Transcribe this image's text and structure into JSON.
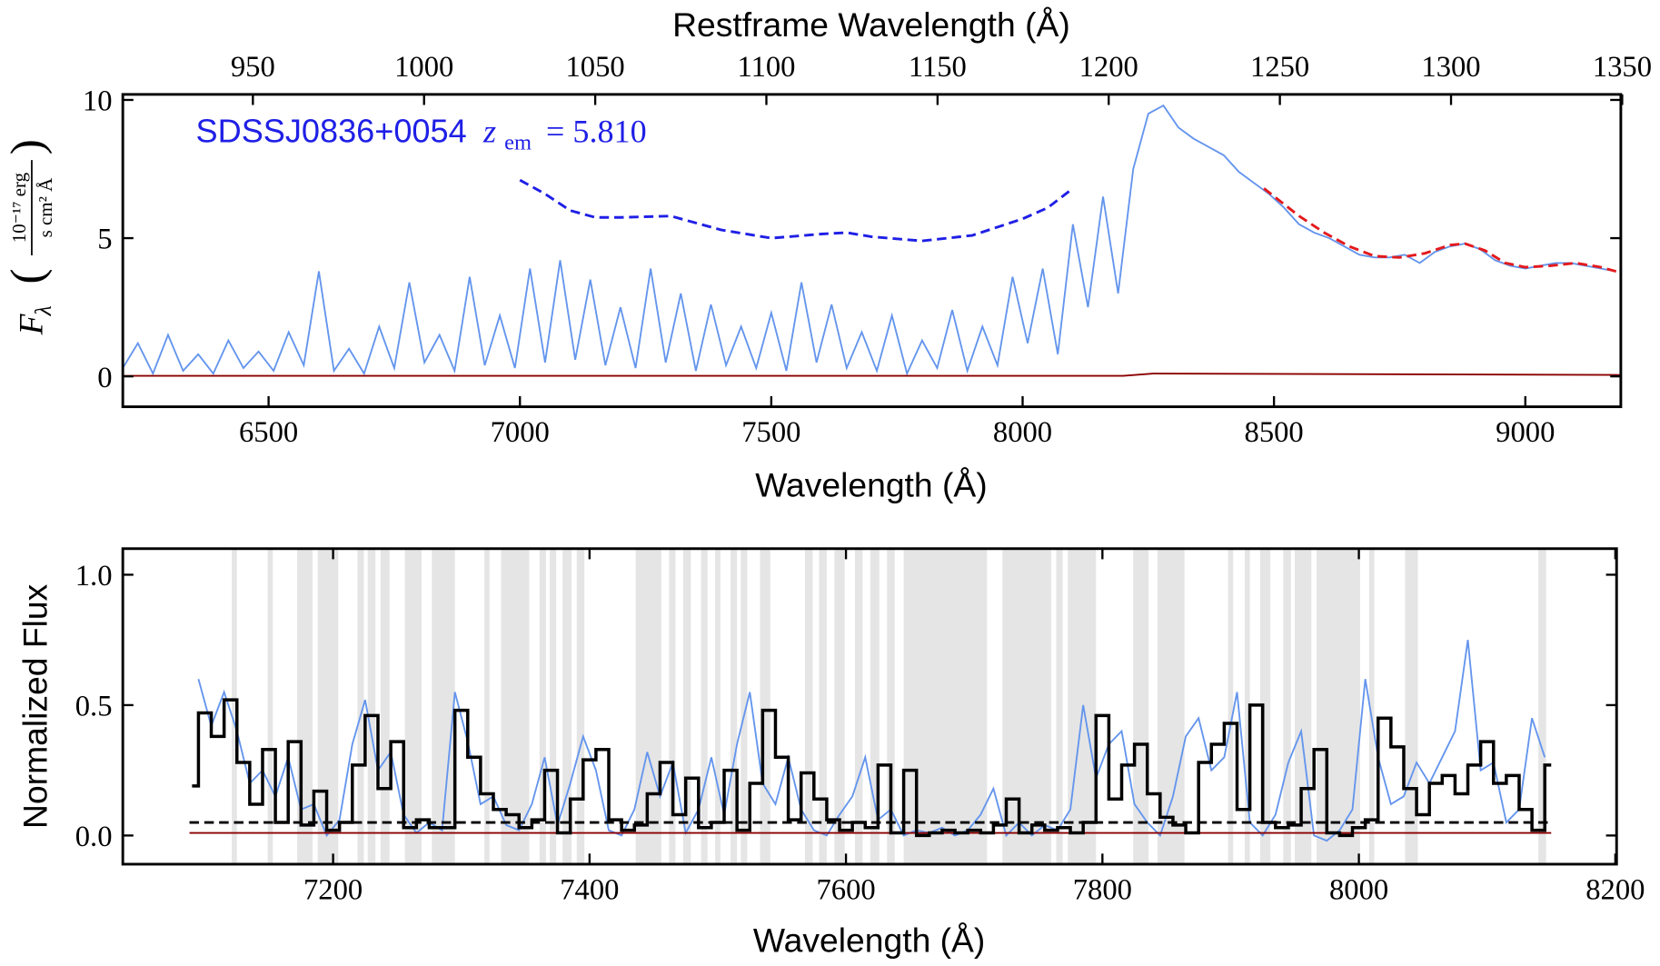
{
  "chart_data": [
    {
      "type": "line",
      "xlabel": "Wavelength (Å)",
      "x2label": "Restframe Wavelength (Å)",
      "ylabel": "F",
      "ylabel_sub": "λ",
      "yunit_num": "10⁻¹⁷ erg",
      "yunit_den": "s cm² Å",
      "annotation": {
        "name": "SDSSJ0836+0054",
        "z": "z",
        "z_sub": "em",
        "z_value": "= 5.810",
        "color": "#1f1fe6"
      },
      "xlim": [
        6210,
        9190
      ],
      "xticks": [
        6500,
        7000,
        7500,
        8000,
        8500,
        9000
      ],
      "x2lim": [
        912,
        1349.6
      ],
      "x2ticks": [
        950,
        1000,
        1050,
        1100,
        1150,
        1200,
        1250,
        1300,
        1350
      ],
      "ylim": [
        -1.1,
        10.2
      ],
      "yticks": [
        0,
        5,
        10
      ],
      "series": [
        {
          "color": "#6495ed",
          "x": [
            6210,
            6240,
            6270,
            6300,
            6330,
            6360,
            6390,
            6420,
            6450,
            6480,
            6510,
            6540,
            6570,
            6600,
            6630,
            6660,
            6690,
            6720,
            6750,
            6780,
            6810,
            6840,
            6870,
            6900,
            6930,
            6960,
            6990,
            7020,
            7050,
            7080,
            7110,
            7140,
            7170,
            7200,
            7230,
            7260,
            7290,
            7320,
            7350,
            7380,
            7410,
            7440,
            7470,
            7500,
            7530,
            7560,
            7590,
            7620,
            7650,
            7680,
            7710,
            7740,
            7770,
            7800,
            7830,
            7860,
            7890,
            7920,
            7950,
            7980,
            8010,
            8040,
            8070,
            8100,
            8130,
            8160,
            8190,
            8220,
            8250,
            8280,
            8310,
            8340,
            8370,
            8400,
            8430,
            8460,
            8490,
            8520,
            8550,
            8580,
            8610,
            8640,
            8670,
            8700,
            8730,
            8760,
            8790,
            8820,
            8850,
            8880,
            8910,
            8940,
            8970,
            9000,
            9030,
            9060,
            9090,
            9120,
            9150,
            9180
          ],
          "values": [
            0.3,
            1.2,
            0.1,
            1.5,
            0.2,
            0.8,
            0.1,
            1.3,
            0.3,
            0.9,
            0.2,
            1.6,
            0.4,
            3.8,
            0.2,
            1.0,
            0.1,
            1.8,
            0.3,
            3.4,
            0.5,
            1.5,
            0.2,
            3.6,
            0.4,
            2.2,
            0.3,
            3.9,
            0.5,
            4.2,
            0.6,
            3.5,
            0.4,
            2.5,
            0.3,
            3.9,
            0.5,
            3.0,
            0.2,
            2.6,
            0.4,
            1.8,
            0.3,
            2.3,
            0.2,
            3.4,
            0.5,
            2.6,
            0.3,
            1.6,
            0.2,
            2.2,
            0.1,
            1.3,
            0.3,
            2.4,
            0.2,
            1.8,
            0.4,
            3.6,
            1.2,
            3.9,
            0.8,
            5.5,
            2.5,
            6.5,
            3.0,
            7.5,
            9.5,
            9.8,
            9.0,
            8.6,
            8.3,
            8.0,
            7.4,
            7.0,
            6.6,
            6.1,
            5.5,
            5.2,
            5.0,
            4.7,
            4.4,
            4.3,
            4.3,
            4.4,
            4.1,
            4.5,
            4.7,
            4.8,
            4.6,
            4.2,
            4.0,
            3.9,
            4.0,
            4.1,
            4.1,
            4.0,
            3.9,
            3.8
          ]
        },
        {
          "color": "#8b0000",
          "x": [
            6210,
            8200,
            8260,
            9190
          ],
          "values": [
            0.02,
            0.02,
            0.1,
            0.05
          ]
        },
        {
          "color": "#e31a1c",
          "dash": true,
          "x": [
            8480,
            8550,
            8600,
            8650,
            8700,
            8750,
            8800,
            8850,
            8880,
            8920,
            8960,
            9000,
            9050,
            9100,
            9150,
            9190
          ],
          "values": [
            6.8,
            5.8,
            5.2,
            4.7,
            4.35,
            4.3,
            4.45,
            4.75,
            4.8,
            4.55,
            4.1,
            3.95,
            4.0,
            4.1,
            3.95,
            3.75
          ]
        },
        {
          "color": "#1f1fe6",
          "dash": true,
          "x": [
            7000,
            7050,
            7100,
            7150,
            7200,
            7300,
            7400,
            7500,
            7600,
            7650,
            7700,
            7800,
            7900,
            8000,
            8050,
            8100
          ],
          "values": [
            7.1,
            6.6,
            6.0,
            5.75,
            5.75,
            5.8,
            5.3,
            5.0,
            5.15,
            5.2,
            5.05,
            4.9,
            5.1,
            5.7,
            6.1,
            6.8
          ]
        }
      ]
    },
    {
      "type": "line",
      "xlabel": "Wavelength (Å)",
      "ylabel": "Normalized Flux",
      "xlim": [
        7036,
        8201
      ],
      "xticks": [
        7200,
        7400,
        7600,
        7800,
        8000,
        8200
      ],
      "ylim": [
        -0.11,
        1.1
      ],
      "yticks": [
        {
          "value": 0,
          "label": "0.0"
        },
        0.5,
        {
          "value": 1,
          "label": "1.0"
        }
      ],
      "shaded_color": "#e5e5e5",
      "shaded": [
        [
          7121,
          7125
        ],
        [
          7149,
          7153
        ],
        [
          7172,
          7184
        ],
        [
          7188,
          7204
        ],
        [
          7219,
          7224
        ],
        [
          7227,
          7233
        ],
        [
          7237,
          7244
        ],
        [
          7256,
          7269
        ],
        [
          7277,
          7295
        ],
        [
          7318,
          7322
        ],
        [
          7331,
          7353
        ],
        [
          7361,
          7366
        ],
        [
          7369,
          7374
        ],
        [
          7379,
          7386
        ],
        [
          7390,
          7396
        ],
        [
          7436,
          7456
        ],
        [
          7462,
          7467
        ],
        [
          7473,
          7479
        ],
        [
          7487,
          7492
        ],
        [
          7498,
          7502
        ],
        [
          7510,
          7515
        ],
        [
          7518,
          7523
        ],
        [
          7533,
          7541
        ],
        [
          7568,
          7574
        ],
        [
          7579,
          7585
        ],
        [
          7591,
          7599
        ],
        [
          7607,
          7613
        ],
        [
          7619,
          7626
        ],
        [
          7632,
          7638
        ],
        [
          7645,
          7710
        ],
        [
          7722,
          7760
        ],
        [
          7764,
          7769
        ],
        [
          7773,
          7795
        ],
        [
          7824,
          7836
        ],
        [
          7843,
          7864
        ],
        [
          7898,
          7902
        ],
        [
          7911,
          7915
        ],
        [
          7923,
          7931
        ],
        [
          7941,
          7947
        ],
        [
          7950,
          7963
        ],
        [
          7967,
          8001
        ],
        [
          8008,
          8012
        ],
        [
          8036,
          8046
        ],
        [
          8140,
          8146
        ]
      ],
      "series": [
        {
          "color": "#6495ed",
          "x": [
            7095,
            7105,
            7115,
            7125,
            7135,
            7145,
            7155,
            7165,
            7175,
            7185,
            7195,
            7205,
            7215,
            7225,
            7235,
            7245,
            7255,
            7265,
            7275,
            7285,
            7295,
            7305,
            7315,
            7325,
            7335,
            7345,
            7355,
            7365,
            7375,
            7385,
            7395,
            7405,
            7415,
            7425,
            7435,
            7445,
            7455,
            7465,
            7475,
            7485,
            7495,
            7505,
            7515,
            7525,
            7535,
            7545,
            7555,
            7565,
            7575,
            7585,
            7595,
            7605,
            7615,
            7625,
            7635,
            7645,
            7655,
            7665,
            7675,
            7685,
            7695,
            7705,
            7715,
            7725,
            7735,
            7745,
            7755,
            7765,
            7775,
            7785,
            7795,
            7805,
            7815,
            7825,
            7835,
            7845,
            7855,
            7865,
            7875,
            7885,
            7895,
            7905,
            7915,
            7925,
            7935,
            7945,
            7955,
            7965,
            7975,
            7985,
            7995,
            8005,
            8015,
            8025,
            8035,
            8045,
            8055,
            8065,
            8075,
            8085,
            8095,
            8105,
            8115,
            8125,
            8135,
            8145
          ],
          "values": [
            0.6,
            0.42,
            0.55,
            0.4,
            0.2,
            0.25,
            0.15,
            0.3,
            0.1,
            0.12,
            0.0,
            0.06,
            0.35,
            0.52,
            0.25,
            0.32,
            0.08,
            0.01,
            0.05,
            0.02,
            0.55,
            0.36,
            0.12,
            0.15,
            0.04,
            0.02,
            0.12,
            0.3,
            0.04,
            0.2,
            0.38,
            0.25,
            0.02,
            0.0,
            0.1,
            0.32,
            0.15,
            0.28,
            0.01,
            0.1,
            0.3,
            0.08,
            0.35,
            0.55,
            0.2,
            0.12,
            0.3,
            0.1,
            0.02,
            0.0,
            0.08,
            0.15,
            0.3,
            0.06,
            0.1,
            0.0,
            0.02,
            0.01,
            0.03,
            0.0,
            0.02,
            0.08,
            0.18,
            0.0,
            0.05,
            0.0,
            0.04,
            0.02,
            0.1,
            0.5,
            0.22,
            0.35,
            0.4,
            0.12,
            0.05,
            0.0,
            0.15,
            0.38,
            0.45,
            0.25,
            0.3,
            0.55,
            0.05,
            0.0,
            0.08,
            0.28,
            0.4,
            0.0,
            -0.02,
            0.02,
            0.1,
            0.6,
            0.3,
            0.12,
            0.15,
            0.28,
            0.2,
            0.3,
            0.4,
            0.75,
            0.25,
            0.28,
            0.05,
            0.1,
            0.45,
            0.3
          ]
        },
        {
          "color": "#8b0000",
          "x": [
            7088,
            8150
          ],
          "values": [
            0.01,
            0.01
          ]
        },
        {
          "color": "#000000",
          "dash": true,
          "x": [
            7088,
            8150
          ],
          "values": [
            0.05,
            0.05
          ]
        },
        {
          "color": "#000000",
          "step": true,
          "width": 3,
          "x": [
            7090,
            7100,
            7110,
            7120,
            7130,
            7140,
            7150,
            7160,
            7170,
            7180,
            7190,
            7200,
            7210,
            7220,
            7230,
            7240,
            7250,
            7260,
            7270,
            7280,
            7290,
            7300,
            7310,
            7320,
            7330,
            7340,
            7350,
            7360,
            7370,
            7380,
            7390,
            7400,
            7410,
            7420,
            7430,
            7440,
            7450,
            7460,
            7470,
            7480,
            7490,
            7500,
            7510,
            7520,
            7530,
            7540,
            7550,
            7560,
            7570,
            7580,
            7590,
            7600,
            7610,
            7620,
            7630,
            7640,
            7650,
            7660,
            7670,
            7680,
            7690,
            7700,
            7710,
            7720,
            7730,
            7740,
            7750,
            7760,
            7770,
            7780,
            7790,
            7800,
            7810,
            7820,
            7830,
            7840,
            7850,
            7860,
            7870,
            7880,
            7890,
            7900,
            7910,
            7920,
            7930,
            7940,
            7950,
            7960,
            7970,
            7980,
            7990,
            8000,
            8010,
            8020,
            8030,
            8040,
            8050,
            8060,
            8070,
            8080,
            8090,
            8100,
            8110,
            8120,
            8130,
            8140,
            8150
          ],
          "values": [
            0.19,
            0.47,
            0.38,
            0.52,
            0.28,
            0.12,
            0.33,
            0.05,
            0.36,
            0.04,
            0.17,
            0.02,
            0.05,
            0.27,
            0.46,
            0.18,
            0.36,
            0.03,
            0.06,
            0.03,
            0.03,
            0.48,
            0.3,
            0.16,
            0.1,
            0.08,
            0.03,
            0.06,
            0.25,
            0.01,
            0.14,
            0.29,
            0.33,
            0.06,
            0.02,
            0.04,
            0.16,
            0.28,
            0.08,
            0.22,
            0.03,
            0.05,
            0.25,
            0.02,
            0.2,
            0.48,
            0.3,
            0.06,
            0.24,
            0.14,
            0.06,
            0.02,
            0.05,
            0.03,
            0.27,
            0.01,
            0.25,
            0.0,
            0.01,
            0.02,
            0.01,
            0.02,
            0.01,
            0.04,
            0.14,
            0.01,
            0.04,
            0.02,
            0.03,
            0.01,
            0.05,
            0.46,
            0.14,
            0.27,
            0.35,
            0.16,
            0.07,
            0.04,
            0.01,
            0.28,
            0.35,
            0.43,
            0.1,
            0.5,
            0.05,
            0.03,
            0.04,
            0.18,
            0.33,
            0.01,
            0.0,
            0.03,
            0.06,
            0.45,
            0.34,
            0.18,
            0.08,
            0.2,
            0.23,
            0.16,
            0.27,
            0.36,
            0.2,
            0.23,
            0.1,
            0.02,
            0.27
          ]
        }
      ]
    }
  ]
}
